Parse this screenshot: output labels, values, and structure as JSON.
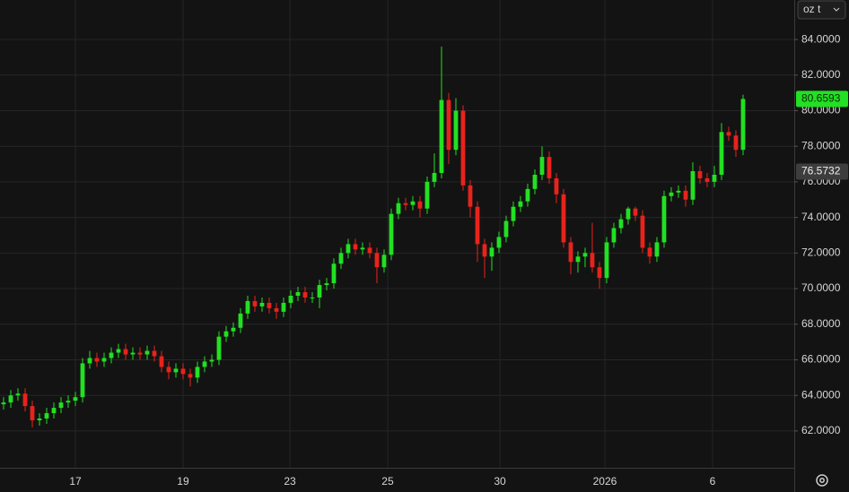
{
  "chart_data": {
    "type": "candlestick",
    "unit": "oz t",
    "up_color": "#22e022",
    "down_color": "#e8231c",
    "grid": true,
    "open": [
      63.5,
      63.6,
      64.0,
      64.1,
      63.4,
      62.6,
      62.7,
      63.0,
      63.3,
      63.6,
      63.7,
      63.9,
      65.8,
      66.1,
      65.9,
      66.1,
      66.4,
      66.6,
      66.3,
      66.4,
      66.3,
      66.5,
      66.2,
      65.6,
      65.3,
      65.5,
      65.2,
      65.0,
      65.6,
      65.9,
      66.0,
      67.3,
      67.6,
      67.8,
      68.6,
      69.3,
      69.0,
      69.2,
      68.9,
      68.7,
      69.2,
      69.6,
      69.8,
      69.5,
      69.5,
      70.2,
      70.3,
      71.4,
      72.0,
      72.5,
      72.2,
      72.3,
      72.0,
      71.2,
      71.9,
      74.2,
      74.8,
      74.7,
      74.9,
      74.5,
      76.0,
      76.5,
      80.6,
      77.8,
      80.0,
      75.8,
      74.6,
      72.5,
      71.8,
      72.3,
      72.9,
      73.8,
      74.6,
      74.9,
      75.6,
      76.4,
      77.4,
      76.2,
      75.3,
      72.6,
      71.5,
      71.8,
      72.0,
      71.2,
      70.6,
      72.6,
      73.4,
      73.9,
      74.5,
      74.1,
      72.3,
      71.8,
      72.6,
      75.2,
      75.4,
      75.5,
      75.0,
      76.6,
      76.2,
      76.0,
      76.4,
      78.8,
      78.6,
      77.8
    ],
    "high": [
      63.9,
      64.3,
      64.4,
      64.4,
      63.7,
      63.0,
      63.3,
      63.6,
      63.9,
      64.0,
      64.2,
      66.1,
      66.5,
      66.4,
      66.4,
      66.7,
      66.9,
      66.9,
      66.7,
      66.7,
      66.8,
      66.8,
      66.5,
      65.9,
      65.8,
      65.8,
      65.5,
      65.9,
      66.2,
      66.3,
      67.6,
      67.9,
      68.1,
      68.9,
      69.6,
      69.6,
      69.5,
      69.5,
      69.2,
      69.5,
      69.9,
      70.1,
      70.1,
      69.8,
      70.5,
      70.6,
      71.7,
      72.3,
      72.8,
      72.8,
      72.6,
      72.6,
      72.3,
      72.2,
      74.5,
      75.1,
      75.1,
      75.2,
      75.2,
      76.3,
      77.6,
      83.6,
      81.0,
      80.7,
      80.3,
      76.1,
      74.9,
      72.8,
      72.6,
      73.2,
      74.1,
      74.9,
      75.2,
      75.9,
      76.7,
      78.0,
      77.7,
      76.5,
      75.6,
      72.9,
      72.1,
      72.3,
      73.7,
      71.5,
      72.9,
      73.7,
      74.2,
      74.6,
      74.6,
      74.4,
      72.6,
      72.9,
      75.5,
      75.7,
      75.8,
      75.8,
      77.1,
      76.9,
      76.5,
      76.9,
      79.3,
      79.1,
      78.9,
      80.9
    ],
    "low": [
      63.2,
      63.3,
      63.7,
      63.1,
      62.2,
      62.3,
      62.4,
      62.7,
      63.0,
      63.3,
      63.4,
      63.6,
      65.5,
      65.6,
      65.6,
      65.8,
      66.1,
      66.0,
      66.0,
      66.0,
      66.0,
      65.9,
      65.3,
      64.9,
      65.0,
      64.9,
      64.5,
      64.7,
      65.3,
      65.6,
      65.7,
      67.0,
      67.3,
      67.5,
      68.3,
      68.7,
      68.7,
      68.6,
      68.3,
      68.4,
      68.9,
      69.3,
      69.2,
      69.2,
      68.9,
      69.9,
      70.0,
      71.1,
      71.7,
      71.9,
      71.9,
      71.7,
      70.3,
      70.9,
      71.6,
      73.9,
      74.4,
      74.4,
      74.0,
      74.2,
      75.7,
      76.2,
      77.0,
      77.5,
      75.5,
      74.0,
      71.5,
      70.6,
      71.0,
      72.0,
      72.6,
      73.5,
      74.3,
      74.6,
      75.3,
      76.1,
      75.9,
      74.8,
      72.3,
      70.8,
      70.9,
      71.2,
      70.9,
      70.0,
      70.3,
      72.3,
      73.1,
      73.6,
      73.8,
      72.0,
      71.4,
      71.5,
      72.3,
      74.9,
      75.1,
      74.6,
      74.7,
      75.9,
      75.7,
      75.7,
      76.1,
      78.3,
      77.4,
      77.5
    ],
    "close": [
      63.6,
      64.0,
      64.1,
      63.4,
      62.6,
      62.7,
      63.0,
      63.3,
      63.6,
      63.7,
      63.9,
      65.8,
      66.1,
      65.9,
      66.1,
      66.4,
      66.6,
      66.3,
      66.4,
      66.3,
      66.5,
      66.2,
      65.6,
      65.3,
      65.5,
      65.2,
      65.0,
      65.6,
      65.9,
      66.0,
      67.3,
      67.6,
      67.8,
      68.6,
      69.3,
      69.0,
      69.2,
      68.9,
      68.7,
      69.2,
      69.6,
      69.8,
      69.5,
      69.5,
      70.2,
      70.3,
      71.4,
      72.0,
      72.5,
      72.2,
      72.3,
      72.0,
      71.2,
      71.9,
      74.2,
      74.8,
      74.7,
      74.9,
      74.5,
      76.0,
      76.5,
      80.6,
      77.8,
      80.0,
      75.8,
      74.6,
      72.5,
      71.8,
      72.3,
      72.9,
      73.8,
      74.6,
      74.9,
      75.6,
      76.4,
      77.4,
      76.2,
      75.3,
      72.6,
      71.5,
      71.8,
      72.0,
      71.2,
      70.6,
      72.6,
      73.4,
      73.9,
      74.5,
      74.1,
      72.3,
      71.8,
      72.6,
      75.2,
      75.4,
      75.5,
      75.0,
      76.6,
      76.2,
      76.0,
      76.4,
      78.8,
      78.6,
      77.8,
      80.6593
    ],
    "xlim": [
      -0.5,
      110.13
    ],
    "xticks": [
      {
        "value": 10,
        "label": "17"
      },
      {
        "value": 25,
        "label": "19"
      },
      {
        "value": 39.88,
        "label": "23"
      },
      {
        "value": 53.5,
        "label": "25"
      },
      {
        "value": 69.13,
        "label": "30"
      },
      {
        "value": 83.75,
        "label": "2026"
      },
      {
        "value": 98.75,
        "label": "6"
      }
    ],
    "ylim": [
      59.93,
      86.22
    ],
    "yticks": [
      {
        "value": 62,
        "label": "62.0000"
      },
      {
        "value": 64,
        "label": "64.0000"
      },
      {
        "value": 66,
        "label": "66.0000"
      },
      {
        "value": 68,
        "label": "68.0000"
      },
      {
        "value": 70,
        "label": "70.0000"
      },
      {
        "value": 72,
        "label": "72.0000"
      },
      {
        "value": 74,
        "label": "74.0000"
      },
      {
        "value": 76,
        "label": "76.0000"
      },
      {
        "value": 78,
        "label": "78.0000"
      },
      {
        "value": 80,
        "label": "80.0000"
      },
      {
        "value": 82,
        "label": "82.0000"
      },
      {
        "value": 84,
        "label": "84.0000"
      }
    ],
    "last_price": {
      "value": 80.6593,
      "label": "80.6593"
    },
    "marker_price": {
      "value": 76.5732,
      "label": "76.5732"
    }
  }
}
